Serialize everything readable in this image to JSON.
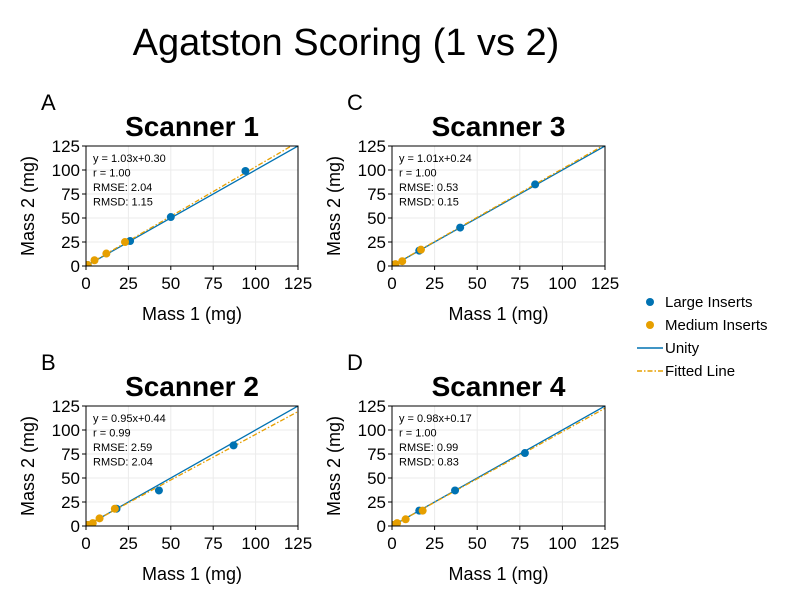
{
  "figure": {
    "title": "Agatston Scoring (1 vs 2)",
    "legend": {
      "placement": "right",
      "entries": [
        {
          "label": "Large Inserts",
          "kind": "marker",
          "color": "#0072B2"
        },
        {
          "label": "Medium Inserts",
          "kind": "marker",
          "color": "#E69F00"
        },
        {
          "label": "Unity",
          "kind": "line",
          "color": "#0072B2"
        },
        {
          "label": "Fitted Line",
          "kind": "dashdot",
          "color": "#E69F00"
        }
      ]
    }
  },
  "chart_data": [
    {
      "type": "scatter",
      "panel_letter": "A",
      "title": "Scanner 1",
      "xlabel": "Mass 1 (mg)",
      "ylabel": "Mass 2 (mg)",
      "xlim": [
        0,
        125
      ],
      "ylim": [
        0,
        125
      ],
      "xticks": [
        "0",
        "25",
        "50",
        "75",
        "100",
        "125"
      ],
      "yticks": [
        "0",
        "25",
        "50",
        "75",
        "100",
        "125"
      ],
      "grid": true,
      "stats": [
        "y = 1.03x+0.30",
        "r = 1.00",
        "RMSE: 2.04",
        "RMSD: 1.15"
      ],
      "fit": {
        "slope": 1.03,
        "intercept": 0.3
      },
      "series": [
        {
          "name": "Large Inserts",
          "color": "#0072B2",
          "points": [
            [
              1,
              1
            ],
            [
              26,
              26
            ],
            [
              50,
              51
            ],
            [
              94,
              99
            ]
          ]
        },
        {
          "name": "Medium Inserts",
          "color": "#E69F00",
          "points": [
            [
              1,
              1
            ],
            [
              5,
              6
            ],
            [
              12,
              13
            ],
            [
              23,
              25
            ]
          ]
        }
      ]
    },
    {
      "type": "scatter",
      "panel_letter": "C",
      "title": "Scanner 3",
      "xlabel": "Mass 1 (mg)",
      "ylabel": "Mass 2 (mg)",
      "xlim": [
        0,
        125
      ],
      "ylim": [
        0,
        125
      ],
      "xticks": [
        "0",
        "25",
        "50",
        "75",
        "100",
        "125"
      ],
      "yticks": [
        "0",
        "25",
        "50",
        "75",
        "100",
        "125"
      ],
      "grid": true,
      "stats": [
        "y = 1.01x+0.24",
        "r = 1.00",
        "RMSE: 0.53",
        "RMSD: 0.15"
      ],
      "fit": {
        "slope": 1.01,
        "intercept": 0.24
      },
      "series": [
        {
          "name": "Large Inserts",
          "color": "#0072B2",
          "points": [
            [
              1,
              1
            ],
            [
              16,
              16
            ],
            [
              40,
              40
            ],
            [
              84,
              85
            ]
          ]
        },
        {
          "name": "Medium Inserts",
          "color": "#E69F00",
          "points": [
            [
              1,
              1
            ],
            [
              2,
              2
            ],
            [
              6,
              5
            ],
            [
              17,
              17
            ]
          ]
        }
      ]
    },
    {
      "type": "scatter",
      "panel_letter": "B",
      "title": "Scanner 2",
      "xlabel": "Mass 1 (mg)",
      "ylabel": "Mass 2 (mg)",
      "xlim": [
        0,
        125
      ],
      "ylim": [
        0,
        125
      ],
      "xticks": [
        "0",
        "25",
        "50",
        "75",
        "100",
        "125"
      ],
      "yticks": [
        "0",
        "25",
        "50",
        "75",
        "100",
        "125"
      ],
      "grid": true,
      "stats": [
        "y = 0.95x+0.44",
        "r = 0.99",
        "RMSE: 2.59",
        "RMSD: 2.04"
      ],
      "fit": {
        "slope": 0.95,
        "intercept": 0.44
      },
      "series": [
        {
          "name": "Large Inserts",
          "color": "#0072B2",
          "points": [
            [
              1,
              1
            ],
            [
              18,
              18
            ],
            [
              43,
              37
            ],
            [
              87,
              84
            ]
          ]
        },
        {
          "name": "Medium Inserts",
          "color": "#E69F00",
          "points": [
            [
              1,
              1
            ],
            [
              4,
              3
            ],
            [
              8,
              8
            ],
            [
              17,
              18
            ]
          ]
        }
      ]
    },
    {
      "type": "scatter",
      "panel_letter": "D",
      "title": "Scanner 4",
      "xlabel": "Mass 1 (mg)",
      "ylabel": "Mass 2 (mg)",
      "xlim": [
        0,
        125
      ],
      "ylim": [
        0,
        125
      ],
      "xticks": [
        "0",
        "25",
        "50",
        "75",
        "100",
        "125"
      ],
      "yticks": [
        "0",
        "25",
        "50",
        "75",
        "100",
        "125"
      ],
      "grid": true,
      "stats": [
        "y = 0.98x+0.17",
        "r = 1.00",
        "RMSE: 0.99",
        "RMSD: 0.83"
      ],
      "fit": {
        "slope": 0.98,
        "intercept": 0.17
      },
      "series": [
        {
          "name": "Large Inserts",
          "color": "#0072B2",
          "points": [
            [
              1,
              1
            ],
            [
              16,
              16
            ],
            [
              37,
              37
            ],
            [
              78,
              76
            ]
          ]
        },
        {
          "name": "Medium Inserts",
          "color": "#E69F00",
          "points": [
            [
              1,
              1
            ],
            [
              3,
              3
            ],
            [
              8,
              7
            ],
            [
              18,
              16
            ]
          ]
        }
      ]
    }
  ]
}
